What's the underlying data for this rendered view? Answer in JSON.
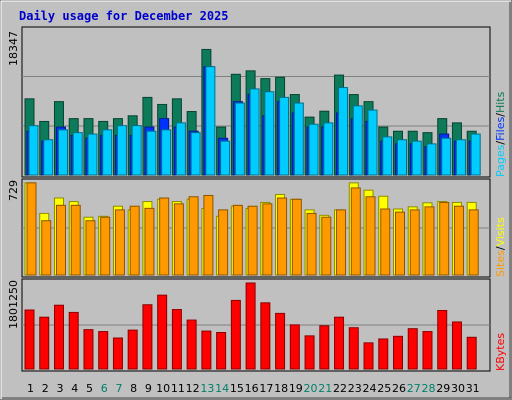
{
  "chart_data": {
    "type": "bar",
    "title": "Daily usage for December 2025",
    "categories": [
      "1",
      "2",
      "3",
      "4",
      "5",
      "6",
      "7",
      "8",
      "9",
      "10",
      "11",
      "12",
      "13",
      "14",
      "15",
      "16",
      "17",
      "18",
      "19",
      "20",
      "21",
      "22",
      "23",
      "24",
      "25",
      "26",
      "27",
      "28",
      "29",
      "30",
      "31"
    ],
    "weekend_days": [
      "6",
      "7",
      "13",
      "14",
      "20",
      "21",
      "27",
      "28"
    ],
    "panels": [
      {
        "name": "top",
        "ymax_label": "18347",
        "ymax": 18347,
        "legend": [
          {
            "text": "Pages",
            "color": "#00ccff"
          },
          {
            "text": "Files",
            "color": "#0033ff"
          },
          {
            "text": "Hits",
            "color": "#0d7a5a"
          }
        ],
        "series": [
          {
            "name": "Hits",
            "color": "#0d7a5a",
            "values": [
              9706,
              6824,
              9346,
              7184,
              7184,
              6824,
              7184,
              7545,
              9886,
              8987,
              9706,
              8088,
              15997,
              6103,
              12831,
              13271,
              12282,
              12452,
              10250,
              7374,
              8128,
              12731,
              10250,
              9347,
              6103,
              5574,
              5574,
              5397,
              7184,
              6644,
              5574
            ]
          },
          {
            "name": "Files",
            "color": "#0033ff",
            "values": [
              5574,
              4315,
              6103,
              5036,
              4675,
              5036,
              5036,
              5036,
              6103,
              7184,
              6103,
              5574,
              13801,
              4675,
              9346,
              10248,
              7545,
              9346,
              7904,
              6103,
              6103,
              7904,
              7184,
              6824,
              4315,
              3965,
              3965,
              3594,
              5216,
              4315,
              4315
            ]
          },
          {
            "name": "Pages",
            "color": "#00ccff",
            "values": [
              6284,
              4495,
              5754,
              5396,
              5216,
              5754,
              6284,
              6284,
              5574,
              5754,
              6644,
              5396,
              13801,
              4315,
              9165,
              10969,
              10609,
              9886,
              9165,
              6464,
              6644,
              11139,
              8808,
              8267,
              4855,
              4495,
              4315,
              3965,
              4675,
              4495,
              5216
            ]
          }
        ]
      },
      {
        "name": "middle",
        "ymax_label": "729",
        "ymax": 729,
        "legend": [
          {
            "text": "Sites",
            "color": "#ff9900"
          },
          {
            "text": "Visits",
            "color": "#ffff00"
          }
        ],
        "series": [
          {
            "name": "Visits",
            "color": "#ffff00",
            "values": [
              730,
              488,
              610,
              582,
              458,
              465,
              545,
              516,
              582,
              600,
              582,
              600,
              527,
              465,
              545,
              527,
              575,
              638,
              600,
              516,
              473,
              516,
              730,
              672,
              624,
              523,
              540,
              572,
              582,
              575,
              575
            ]
          },
          {
            "name": "Sites",
            "color": "#ff9900",
            "values": [
              730,
              430,
              552,
              552,
              430,
              458,
              516,
              545,
              528,
              610,
              564,
              620,
              630,
              516,
              552,
              545,
              564,
              610,
              600,
              488,
              458,
              516,
              690,
              620,
              523,
              498,
              516,
              540,
              575,
              545,
              516
            ]
          }
        ]
      },
      {
        "name": "bottom",
        "ymax_label": "1801250",
        "ymax": 1801250,
        "legend": [
          {
            "text": "KBytes",
            "color": "#ff0000"
          }
        ],
        "series": [
          {
            "name": "KBytes",
            "color": "#ff0000",
            "values": [
              1235417,
              1084821,
              1335814,
              1184948,
              824442,
              784263,
              649184,
              814392,
              1345839,
              1546624,
              1245360,
              1024661,
              794286,
              764155,
              1436219,
              1801250,
              1385988,
              1164882,
              924846,
              694348,
              904779,
              1084821,
              864586,
              547851,
              628861,
              684257,
              844516,
              784263,
              1225380,
              984919,
              664356
            ]
          }
        ]
      }
    ]
  }
}
